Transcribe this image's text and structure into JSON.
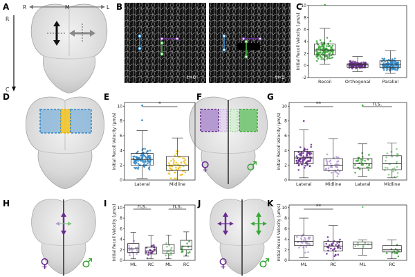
{
  "panels": {
    "A": {
      "label": "A",
      "axis_R": "R",
      "axis_M": "M",
      "axis_L": "L",
      "axis_C": "C"
    },
    "B": {
      "label": "B",
      "t0": "t=0",
      "t1": "t=1"
    },
    "C": {
      "label": "C"
    },
    "D": {
      "label": "D"
    },
    "E": {
      "label": "E"
    },
    "F": {
      "label": "F",
      "female": "♀",
      "male": "♂"
    },
    "G": {
      "label": "G"
    },
    "H": {
      "label": "H",
      "female": "♀",
      "male": "♂"
    },
    "I": {
      "label": "I"
    },
    "J": {
      "label": "J",
      "female": "♀",
      "male": "♂"
    },
    "K": {
      "label": "K"
    }
  },
  "colors": {
    "green": "#3aa637",
    "purple": "#6a2c91",
    "blue": "#2f86c6",
    "yellow": "#f2c21b",
    "lavender": "#b49ad1",
    "lightgreen": "#7fc97f",
    "box": "#333333"
  },
  "chart_data": [
    {
      "id": "C",
      "type": "box-strip",
      "ylabel": "Initial Recoil Velocity (μm/s)",
      "ylim": [
        -2,
        10
      ],
      "yticks": [
        -2,
        0,
        2,
        4,
        6,
        8,
        10
      ],
      "categories": [
        "Recoil",
        "Orthogonal",
        "Parallel"
      ],
      "colors": [
        "#3aa637",
        "#6a2c91",
        "#2f86c6"
      ],
      "boxes": [
        {
          "q1": 1.8,
          "median": 2.6,
          "q3": 3.6,
          "lo": 0.2,
          "hi": 6.2
        },
        {
          "q1": -0.3,
          "median": 0.1,
          "q3": 0.3,
          "lo": -1.0,
          "hi": 1.5
        },
        {
          "q1": -0.3,
          "median": 0.2,
          "q3": 0.8,
          "lo": -1.3,
          "hi": 2.5
        }
      ],
      "npoints": [
        120,
        110,
        120
      ],
      "outliers": [
        [
          10.1
        ],
        [],
        []
      ],
      "sig": []
    },
    {
      "id": "E",
      "type": "box-strip",
      "ylabel": "Initial Recoil Velocity (μm/s)",
      "ylim": [
        0,
        10.5
      ],
      "yticks": [
        0,
        2,
        4,
        6,
        8,
        10
      ],
      "categories": [
        "Lateral",
        "Midline"
      ],
      "colors": [
        "#2f86c6",
        "#f2c21b"
      ],
      "boxes": [
        {
          "q1": 2.0,
          "median": 2.8,
          "q3": 3.6,
          "lo": 0.2,
          "hi": 6.7
        },
        {
          "q1": 1.3,
          "median": 2.0,
          "q3": 3.2,
          "lo": 0.0,
          "hi": 5.7
        }
      ],
      "npoints": [
        100,
        55
      ],
      "outliers": [
        [
          8.1,
          10.1
        ],
        []
      ],
      "sig": [
        {
          "from": 0,
          "to": 1,
          "label": "*"
        }
      ]
    },
    {
      "id": "G",
      "type": "box-strip",
      "ylabel": "Initial Recoil Velocity (μm/s)",
      "ylim": [
        0,
        10.5
      ],
      "yticks": [
        0,
        2,
        4,
        6,
        8,
        10
      ],
      "categories": [
        "Lateral",
        "Midline",
        "Lateral",
        "Midline"
      ],
      "colors": [
        "#6a2c91",
        "#b49ad1",
        "#3aa637",
        "#7fc97f"
      ],
      "boxes": [
        {
          "q1": 2.2,
          "median": 3.0,
          "q3": 3.9,
          "lo": 0.3,
          "hi": 6.8
        },
        {
          "q1": 1.3,
          "median": 2.0,
          "q3": 2.9,
          "lo": 0.0,
          "hi": 5.6
        },
        {
          "q1": 1.6,
          "median": 2.2,
          "q3": 2.9,
          "lo": 0.5,
          "hi": 4.9
        },
        {
          "q1": 1.4,
          "median": 2.2,
          "q3": 3.3,
          "lo": 0.3,
          "hi": 5.0
        }
      ],
      "npoints": [
        80,
        40,
        30,
        25
      ],
      "outliers": [
        [
          8.0
        ],
        [],
        [
          10.1
        ],
        []
      ],
      "sig": [
        {
          "from": 0,
          "to": 1,
          "label": "**"
        },
        {
          "from": 2,
          "to": 3,
          "label": "n.s."
        }
      ]
    },
    {
      "id": "I",
      "type": "box-strip",
      "ylabel": "Initial Recoil Velocity (μm/s)",
      "ylim": [
        0,
        10.5
      ],
      "yticks": [
        0,
        2,
        4,
        6,
        8,
        10
      ],
      "categories": [
        "ML",
        "RC",
        "ML",
        "RC"
      ],
      "colors": [
        "#b49ad1",
        "#6a2c91",
        "#7fc97f",
        "#3aa637"
      ],
      "boxes": [
        {
          "q1": 1.5,
          "median": 2.2,
          "q3": 3.2,
          "lo": 0.3,
          "hi": 5.3
        },
        {
          "q1": 1.2,
          "median": 1.8,
          "q3": 2.5,
          "lo": 0.3,
          "hi": 4.7
        },
        {
          "q1": 1.3,
          "median": 1.8,
          "q3": 3.0,
          "lo": 0.3,
          "hi": 4.8
        },
        {
          "q1": 2.0,
          "median": 2.7,
          "q3": 3.8,
          "lo": 0.8,
          "hi": 5.4
        }
      ],
      "npoints": [
        18,
        20,
        12,
        12
      ],
      "outliers": [
        [],
        [],
        [],
        []
      ],
      "sig": [
        {
          "from": 0,
          "to": 1,
          "label": "n.s."
        },
        {
          "from": 2,
          "to": 3,
          "label": "n.s."
        }
      ]
    },
    {
      "id": "K",
      "type": "box-strip",
      "ylabel": "Initial Recoil Velocity (μm/s)",
      "ylim": [
        0,
        10.5
      ],
      "yticks": [
        0,
        2,
        4,
        6,
        8,
        10
      ],
      "categories": [
        "ML",
        "RC",
        "ML",
        "RC"
      ],
      "colors": [
        "#b49ad1",
        "#6a2c91",
        "#7fc97f",
        "#3aa637"
      ],
      "boxes": [
        {
          "q1": 2.8,
          "median": 3.6,
          "q3": 4.7,
          "lo": 0.6,
          "hi": 8.0
        },
        {
          "q1": 1.8,
          "median": 2.7,
          "q3": 3.6,
          "lo": 0.0,
          "hi": 6.6
        },
        {
          "q1": 2.3,
          "median": 3.0,
          "q3": 3.5,
          "lo": 1.0,
          "hi": 3.9
        },
        {
          "q1": 1.6,
          "median": 2.0,
          "q3": 2.8,
          "lo": 0.3,
          "hi": 3.9
        }
      ],
      "npoints": [
        30,
        35,
        8,
        14
      ],
      "outliers": [
        [],
        [],
        [
          10.1
        ],
        []
      ],
      "sig": [
        {
          "from": 0,
          "to": 1,
          "label": "**"
        }
      ]
    }
  ]
}
